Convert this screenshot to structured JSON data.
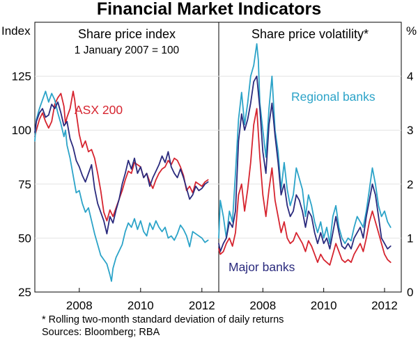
{
  "title": "Financial Market Indicators",
  "footnotes": [
    "*    Rolling two-month standard deviation of daily returns",
    "Sources: Bloomberg; RBA"
  ],
  "chart_data": [
    {
      "type": "line",
      "title": "Share price index",
      "subtitle": "1 January 2007 = 100",
      "ylabel": "Index",
      "ylim": [
        25,
        150
      ],
      "yticks": [
        25,
        50,
        75,
        100,
        125
      ],
      "xlim": [
        2006.55,
        2012.55
      ],
      "xticks": [
        2008,
        2010,
        2012
      ],
      "xtick_labels": [
        "2008",
        "2010",
        "2012"
      ],
      "annotations": [
        {
          "text": "ASX 200",
          "color": "#d6242f"
        }
      ],
      "series": [
        {
          "name": "ASX 200",
          "color": "#d6242f",
          "x": [
            2006.55,
            2006.6,
            2006.7,
            2006.8,
            2006.9,
            2007.0,
            2007.1,
            2007.2,
            2007.3,
            2007.4,
            2007.5,
            2007.55,
            2007.6,
            2007.7,
            2007.8,
            2007.85,
            2007.9,
            2008.0,
            2008.1,
            2008.2,
            2008.3,
            2008.4,
            2008.5,
            2008.6,
            2008.7,
            2008.8,
            2008.9,
            2009.0,
            2009.1,
            2009.2,
            2009.3,
            2009.4,
            2009.5,
            2009.6,
            2009.7,
            2009.8,
            2009.9,
            2010.0,
            2010.1,
            2010.2,
            2010.3,
            2010.4,
            2010.5,
            2010.6,
            2010.7,
            2010.8,
            2010.9,
            2011.0,
            2011.1,
            2011.2,
            2011.3,
            2011.4,
            2011.5,
            2011.6,
            2011.7,
            2011.8,
            2011.9,
            2012.0,
            2012.1,
            2012.2
          ],
          "values": [
            97,
            100,
            105,
            108,
            104,
            101,
            104,
            112,
            115,
            117,
            111,
            103,
            106,
            110,
            118,
            114,
            108,
            98,
            92,
            95,
            90,
            91,
            87,
            80,
            72,
            62,
            58,
            63,
            60,
            64,
            68,
            72,
            77,
            81,
            80,
            85,
            84,
            83,
            78,
            80,
            76,
            73,
            77,
            80,
            82,
            83,
            86,
            84,
            87,
            86,
            83,
            79,
            72,
            74,
            71,
            76,
            75,
            74,
            76,
            77
          ]
        },
        {
          "name": "Regional banks",
          "color": "#2ba3c8",
          "x": [
            2006.55,
            2006.6,
            2006.7,
            2006.8,
            2006.9,
            2007.0,
            2007.1,
            2007.2,
            2007.3,
            2007.4,
            2007.5,
            2007.55,
            2007.6,
            2007.7,
            2007.8,
            2007.9,
            2008.0,
            2008.1,
            2008.2,
            2008.3,
            2008.4,
            2008.5,
            2008.6,
            2008.7,
            2008.8,
            2008.9,
            2009.0,
            2009.05,
            2009.1,
            2009.2,
            2009.3,
            2009.4,
            2009.5,
            2009.6,
            2009.7,
            2009.8,
            2009.9,
            2010.0,
            2010.1,
            2010.2,
            2010.3,
            2010.4,
            2010.5,
            2010.6,
            2010.7,
            2010.8,
            2010.9,
            2011.0,
            2011.1,
            2011.2,
            2011.3,
            2011.4,
            2011.5,
            2011.6,
            2011.7,
            2011.8,
            2011.9,
            2012.0,
            2012.1,
            2012.2
          ],
          "values": [
            95,
            105,
            110,
            114,
            118,
            113,
            117,
            114,
            108,
            103,
            97,
            100,
            93,
            87,
            79,
            71,
            72,
            66,
            62,
            64,
            58,
            52,
            47,
            42,
            40,
            38,
            33,
            30,
            36,
            41,
            44,
            47,
            53,
            57,
            55,
            59,
            54,
            58,
            53,
            51,
            57,
            54,
            58,
            55,
            53,
            55,
            50,
            51,
            49,
            52,
            56,
            54,
            51,
            46,
            53,
            52,
            51,
            50,
            48,
            49
          ]
        },
        {
          "name": "Major banks",
          "color": "#2a2a7d",
          "x": [
            2006.55,
            2006.6,
            2006.7,
            2006.8,
            2006.9,
            2007.0,
            2007.1,
            2007.2,
            2007.3,
            2007.4,
            2007.5,
            2007.6,
            2007.7,
            2007.8,
            2007.9,
            2008.0,
            2008.1,
            2008.2,
            2008.3,
            2008.4,
            2008.5,
            2008.6,
            2008.7,
            2008.8,
            2008.9,
            2009.0,
            2009.1,
            2009.2,
            2009.3,
            2009.4,
            2009.5,
            2009.6,
            2009.7,
            2009.8,
            2009.9,
            2010.0,
            2010.1,
            2010.2,
            2010.3,
            2010.4,
            2010.5,
            2010.6,
            2010.7,
            2010.8,
            2010.9,
            2011.0,
            2011.1,
            2011.2,
            2011.3,
            2011.4,
            2011.5,
            2011.6,
            2011.7,
            2011.8,
            2011.9,
            2012.0,
            2012.1,
            2012.2
          ],
          "values": [
            99,
            104,
            108,
            110,
            106,
            107,
            112,
            110,
            113,
            108,
            102,
            104,
            96,
            92,
            86,
            83,
            79,
            76,
            80,
            84,
            73,
            66,
            62,
            58,
            52,
            60,
            57,
            63,
            68,
            75,
            80,
            86,
            82,
            87,
            80,
            83,
            78,
            80,
            74,
            78,
            81,
            84,
            88,
            85,
            90,
            83,
            80,
            78,
            82,
            78,
            73,
            68,
            70,
            74,
            72,
            73,
            75,
            76
          ]
        }
      ]
    },
    {
      "type": "line",
      "title": "Share price volatility*",
      "ylabel": "%",
      "ylim": [
        0,
        5
      ],
      "yticks": [
        0,
        1,
        2,
        3,
        4
      ],
      "xlim": [
        2006.55,
        2012.55
      ],
      "xticks": [
        2008,
        2010,
        2012
      ],
      "xtick_labels": [
        "2008",
        "2010",
        "2012"
      ],
      "annotations": [
        {
          "text": "Regional banks",
          "color": "#2ba3c8"
        },
        {
          "text": "Major banks",
          "color": "#2a2a7d"
        }
      ],
      "series": [
        {
          "name": "Regional banks",
          "color": "#2ba3c8",
          "x": [
            2006.55,
            2006.6,
            2006.7,
            2006.8,
            2006.9,
            2007.0,
            2007.1,
            2007.2,
            2007.3,
            2007.4,
            2007.5,
            2007.6,
            2007.7,
            2007.8,
            2007.85,
            2007.9,
            2008.0,
            2008.1,
            2008.2,
            2008.3,
            2008.4,
            2008.5,
            2008.6,
            2008.7,
            2008.8,
            2008.9,
            2009.0,
            2009.1,
            2009.2,
            2009.3,
            2009.4,
            2009.5,
            2009.6,
            2009.7,
            2009.8,
            2009.9,
            2010.0,
            2010.1,
            2010.2,
            2010.3,
            2010.4,
            2010.5,
            2010.6,
            2010.7,
            2010.8,
            2010.9,
            2011.0,
            2011.1,
            2011.2,
            2011.3,
            2011.4,
            2011.5,
            2011.6,
            2011.7,
            2011.8,
            2011.9,
            2012.0,
            2012.1,
            2012.2
          ],
          "values": [
            1.0,
            1.7,
            1.4,
            1.0,
            1.5,
            1.3,
            2.2,
            3.2,
            3.7,
            3.1,
            3.5,
            4.0,
            4.2,
            4.6,
            4.3,
            3.5,
            3.0,
            2.5,
            3.4,
            4.0,
            3.0,
            2.6,
            1.9,
            2.4,
            1.9,
            1.6,
            1.8,
            2.3,
            2.1,
            1.9,
            1.4,
            1.8,
            1.6,
            1.3,
            1.1,
            1.3,
            1.0,
            1.2,
            0.9,
            1.4,
            1.6,
            1.2,
            1.0,
            0.9,
            1.0,
            0.95,
            1.2,
            1.4,
            1.3,
            1.2,
            1.5,
            1.9,
            2.3,
            2.0,
            1.6,
            1.4,
            1.5,
            1.3,
            1.2
          ]
        },
        {
          "name": "Major banks",
          "color": "#2a2a7d",
          "x": [
            2006.55,
            2006.6,
            2006.7,
            2006.8,
            2006.9,
            2007.0,
            2007.1,
            2007.2,
            2007.3,
            2007.4,
            2007.5,
            2007.6,
            2007.7,
            2007.8,
            2007.9,
            2008.0,
            2008.1,
            2008.2,
            2008.3,
            2008.4,
            2008.5,
            2008.6,
            2008.7,
            2008.8,
            2008.9,
            2009.0,
            2009.1,
            2009.2,
            2009.3,
            2009.4,
            2009.5,
            2009.6,
            2009.7,
            2009.8,
            2009.9,
            2010.0,
            2010.1,
            2010.2,
            2010.3,
            2010.4,
            2010.5,
            2010.6,
            2010.7,
            2010.8,
            2010.9,
            2011.0,
            2011.1,
            2011.2,
            2011.3,
            2011.4,
            2011.5,
            2011.6,
            2011.7,
            2011.8,
            2011.9,
            2012.0,
            2012.1,
            2012.2
          ],
          "values": [
            0.9,
            0.75,
            0.9,
            1.0,
            1.3,
            1.2,
            1.5,
            2.8,
            3.3,
            3.0,
            3.2,
            3.5,
            3.9,
            4.0,
            3.4,
            2.6,
            2.2,
            3.1,
            3.5,
            2.9,
            2.4,
            1.8,
            2.0,
            1.6,
            1.4,
            1.5,
            1.8,
            1.7,
            1.5,
            1.2,
            1.5,
            1.4,
            1.1,
            0.9,
            1.1,
            0.9,
            1.0,
            0.8,
            1.1,
            1.4,
            1.1,
            0.85,
            0.8,
            0.9,
            0.8,
            1.0,
            1.1,
            1.2,
            1.0,
            1.4,
            1.7,
            2.0,
            1.8,
            1.4,
            1.0,
            0.9,
            0.8,
            0.85
          ]
        },
        {
          "name": "ASX 200",
          "color": "#d6242f",
          "x": [
            2006.55,
            2006.6,
            2006.7,
            2006.8,
            2006.9,
            2007.0,
            2007.1,
            2007.2,
            2007.3,
            2007.4,
            2007.5,
            2007.6,
            2007.7,
            2007.8,
            2007.9,
            2008.0,
            2008.1,
            2008.2,
            2008.3,
            2008.4,
            2008.5,
            2008.6,
            2008.7,
            2008.8,
            2008.9,
            2009.0,
            2009.1,
            2009.2,
            2009.3,
            2009.4,
            2009.5,
            2009.6,
            2009.7,
            2009.8,
            2009.9,
            2010.0,
            2010.1,
            2010.2,
            2010.3,
            2010.4,
            2010.5,
            2010.6,
            2010.7,
            2010.8,
            2010.9,
            2011.0,
            2011.1,
            2011.2,
            2011.3,
            2011.4,
            2011.5,
            2011.6,
            2011.7,
            2011.8,
            2011.9,
            2012.0,
            2012.1,
            2012.2
          ],
          "values": [
            0.8,
            0.7,
            0.75,
            0.9,
            1.0,
            0.85,
            1.1,
            1.8,
            2.0,
            1.5,
            1.9,
            2.4,
            3.1,
            3.4,
            2.5,
            1.8,
            1.4,
            1.9,
            2.3,
            1.7,
            1.4,
            1.1,
            1.3,
            1.0,
            0.9,
            0.95,
            1.1,
            1.0,
            0.9,
            0.75,
            0.95,
            0.85,
            0.7,
            0.55,
            0.7,
            0.6,
            0.55,
            0.5,
            0.7,
            0.9,
            0.75,
            0.6,
            0.55,
            0.6,
            0.55,
            0.7,
            0.8,
            0.9,
            0.75,
            1.0,
            1.3,
            1.5,
            1.3,
            1.1,
            0.9,
            0.7,
            0.6,
            0.55
          ]
        }
      ]
    }
  ]
}
